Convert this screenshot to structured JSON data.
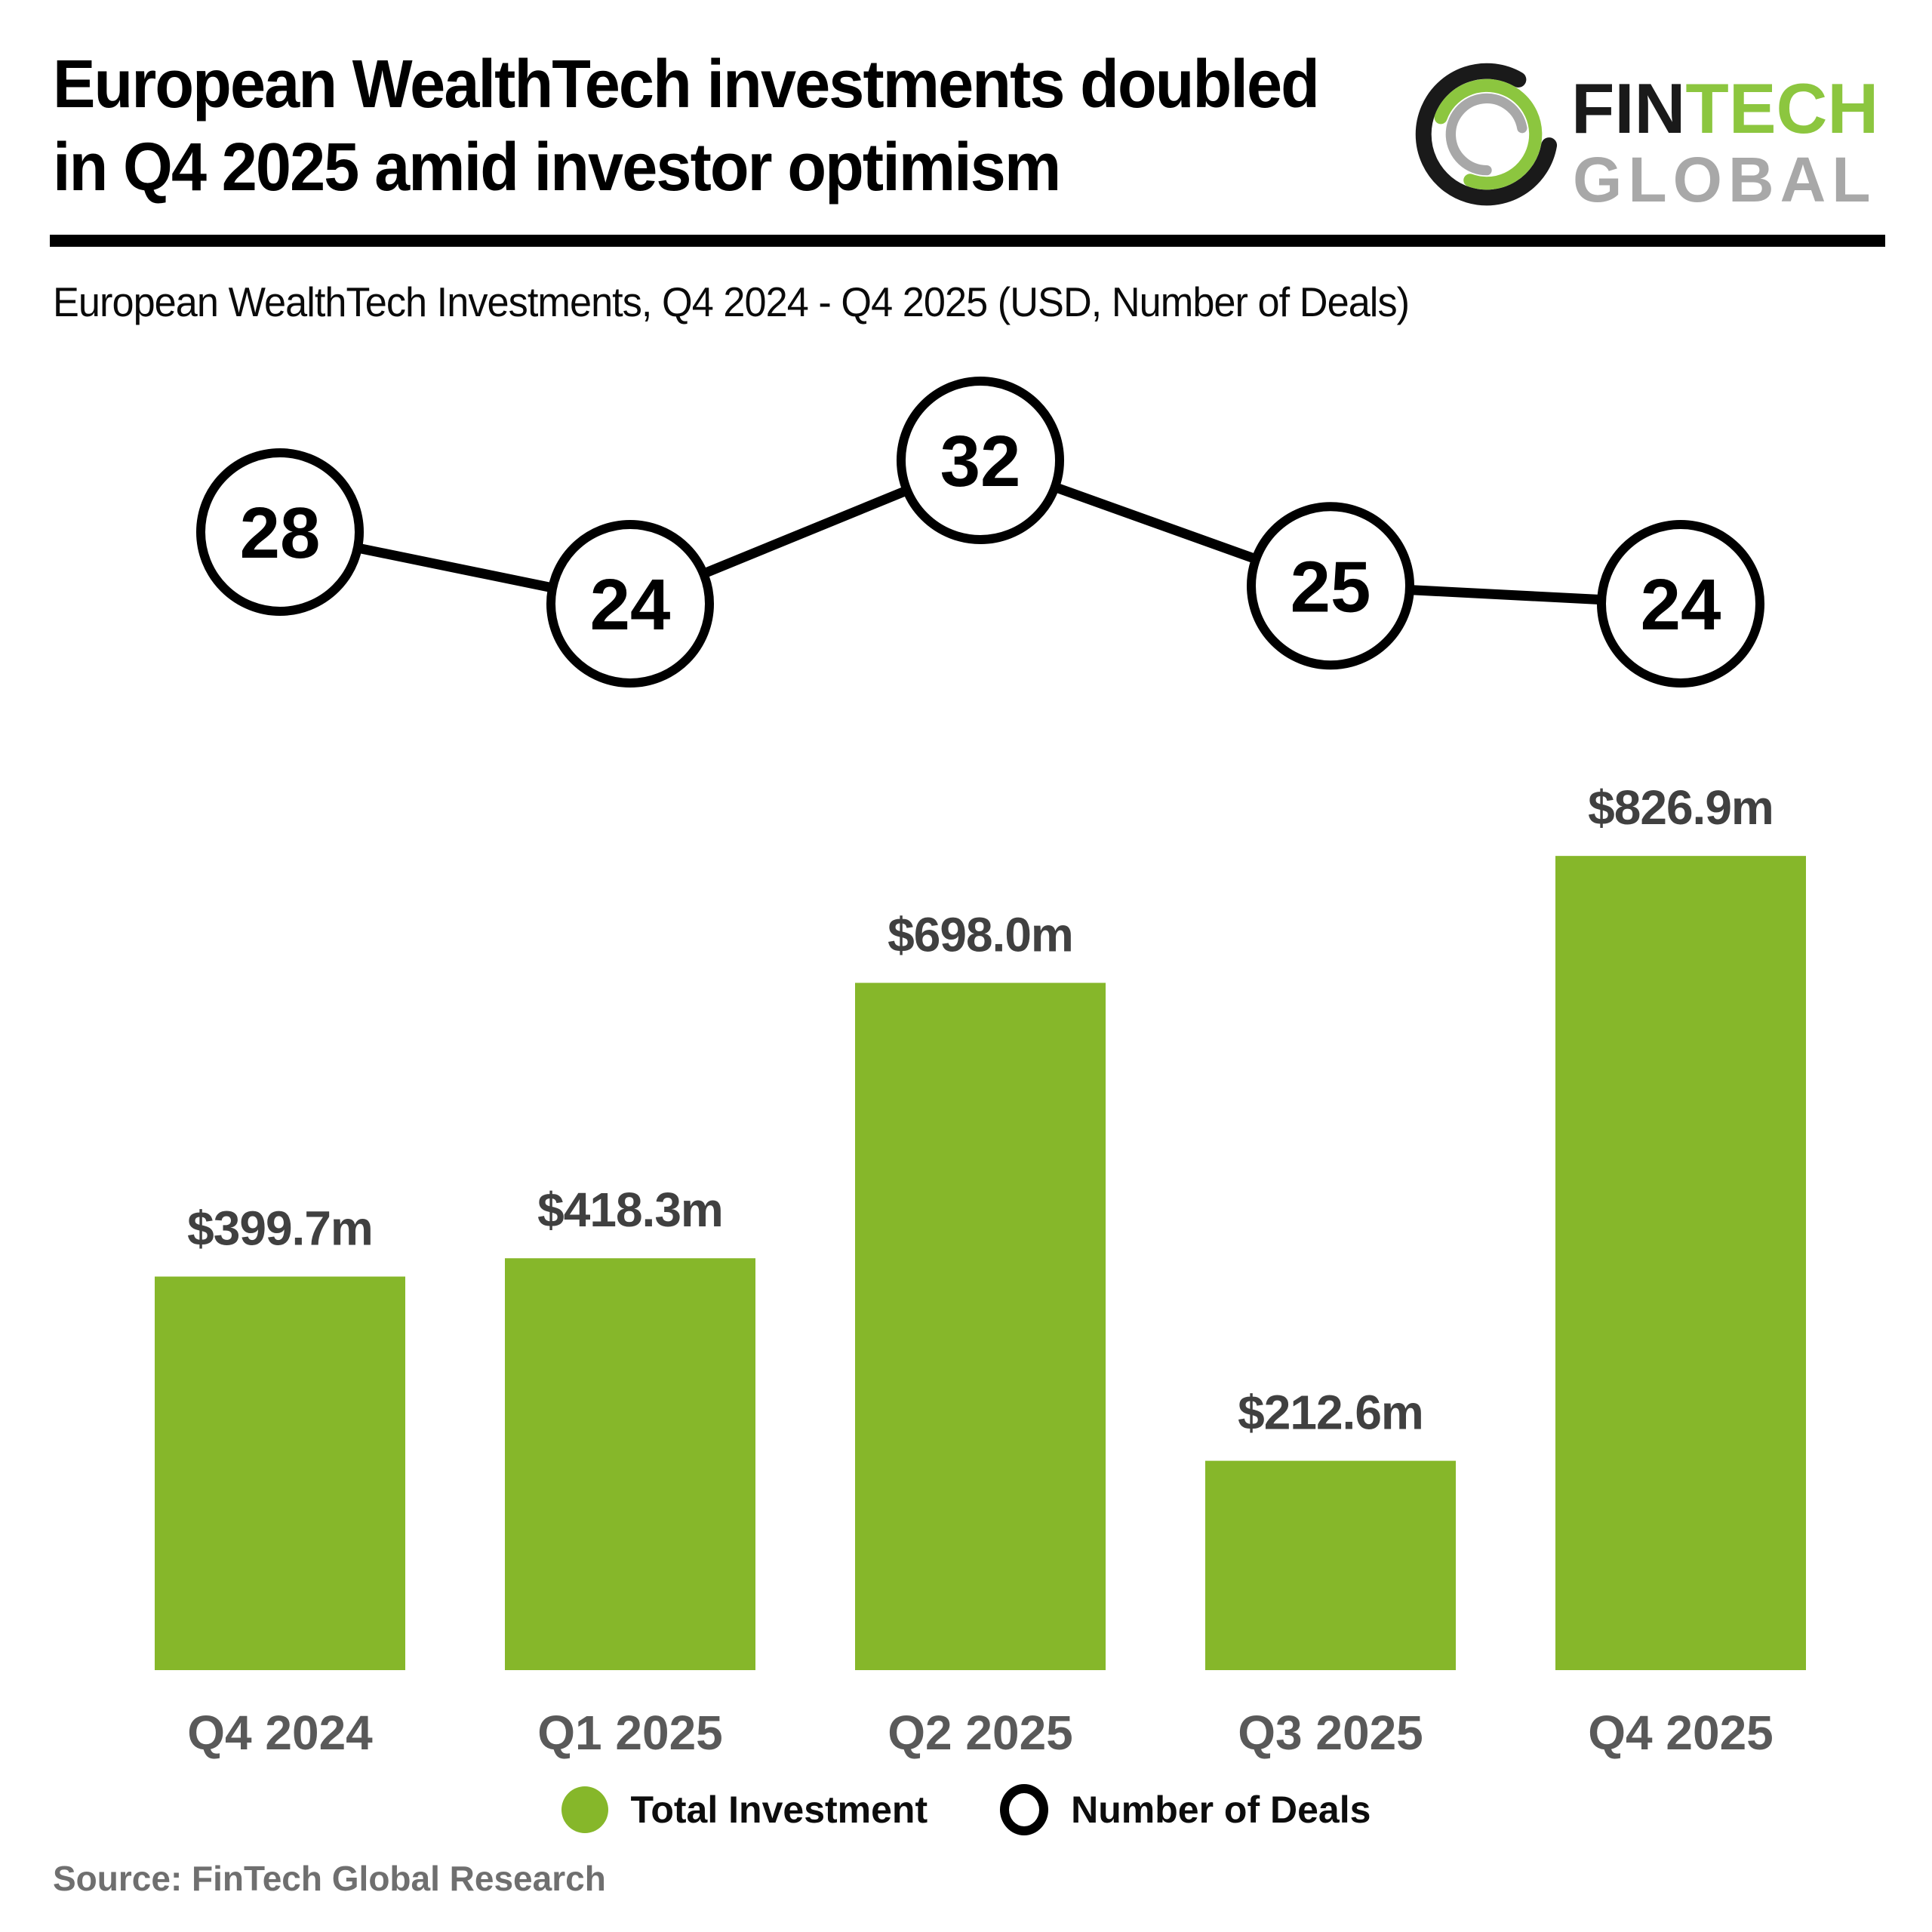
{
  "header": {
    "title_line1": "European WealthTech investments doubled",
    "title_line2": "in Q4 2025 amid investor optimism",
    "logo": {
      "part1": "FIN",
      "part2": "TECH",
      "part3": "GLOBAL"
    }
  },
  "subtitle": "European WealthTech Investments, Q4 2024 - Q4 2025 (USD, Number of Deals)",
  "legend": {
    "items": [
      {
        "label": "Total Investment",
        "marker": "green-dot"
      },
      {
        "label": "Number of Deals",
        "marker": "open-circle"
      }
    ]
  },
  "source": "Source: FinTech Global Research",
  "colors": {
    "bar_green": "#86B72A",
    "logo_green": "#8CC63F",
    "logo_black": "#1A1A1A",
    "logo_gray": "#A8A8A8",
    "value_label": "#404040",
    "axis_label": "#595959",
    "deal_circle_stroke": "#000000",
    "source_gray": "#6F6F6F"
  },
  "chart_data": {
    "type": "bar",
    "title": "European WealthTech Investments, Q4 2024 - Q4 2025 (USD, Number of Deals)",
    "categories": [
      "Q4 2024",
      "Q1 2025",
      "Q2 2025",
      "Q3 2025",
      "Q4 2025"
    ],
    "series": [
      {
        "name": "Total Investment",
        "type": "bar",
        "unit": "USD millions",
        "values": [
          399.7,
          418.3,
          698.0,
          212.6,
          826.9
        ],
        "labels": [
          "$399.7m",
          "$418.3m",
          "$698.0m",
          "$212.6m",
          "$826.9m"
        ]
      },
      {
        "name": "Number of Deals",
        "type": "line-markers",
        "values": [
          28,
          24,
          32,
          25,
          24
        ]
      }
    ],
    "ylim": [
      0,
      850
    ],
    "grid": false,
    "legend_position": "bottom"
  }
}
